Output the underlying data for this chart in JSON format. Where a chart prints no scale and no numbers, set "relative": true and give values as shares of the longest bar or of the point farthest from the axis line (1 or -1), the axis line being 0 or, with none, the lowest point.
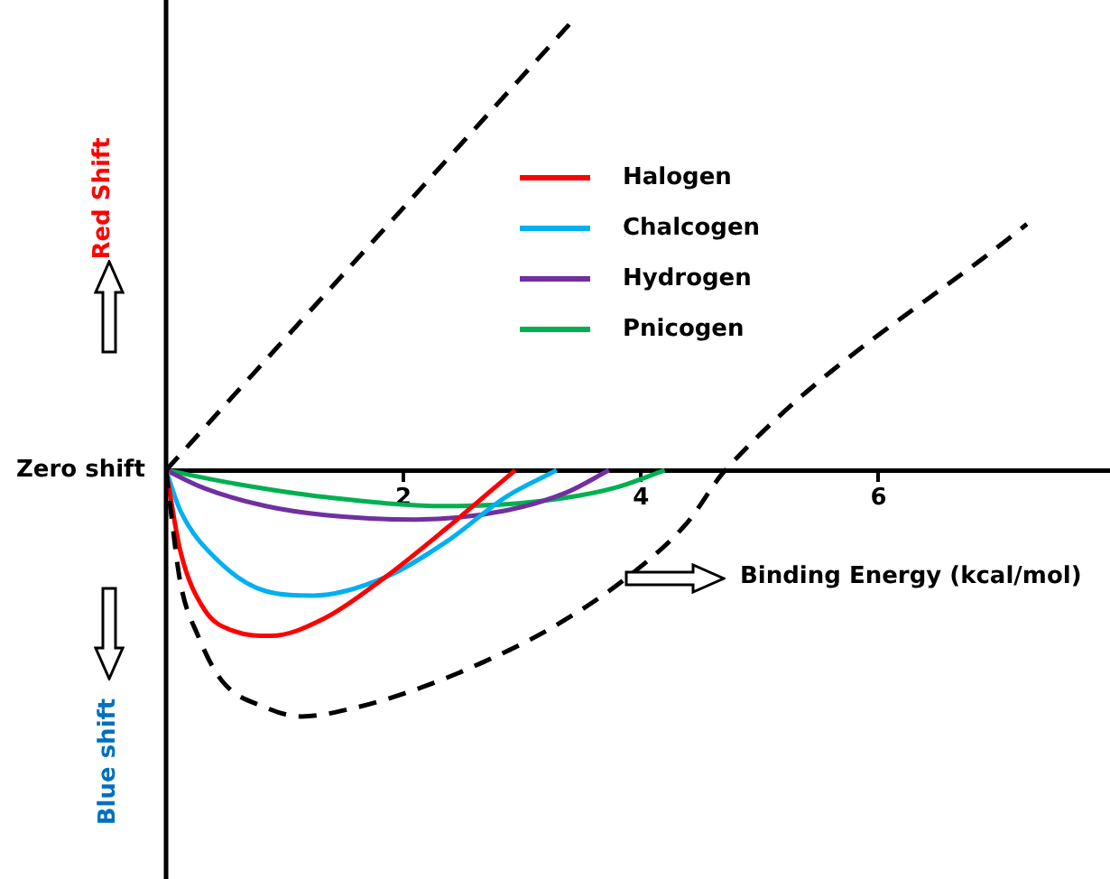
{
  "chart_data": {
    "type": "line",
    "relative": true,
    "xlabel": "Binding Energy (kcal/mol)",
    "annotations": [
      "Red Shift",
      "Blue shift",
      "Zero shift"
    ],
    "xlim": [
      0,
      7.95
    ],
    "xticks": [
      2,
      4,
      6
    ],
    "grid": false,
    "legend": "top",
    "marker": "none",
    "tick_labels": "x",
    "series": [
      {
        "color": "#000000",
        "line_style": "dashed",
        "x": [
          0,
          3.41
        ],
        "values": [
          0,
          1.0
        ]
      },
      {
        "color": "#000000",
        "line_style": "dashed",
        "x": [
          0,
          0.04,
          0.12,
          0.27,
          0.47,
          0.84,
          1.14,
          1.6,
          2.1,
          2.66,
          3.26,
          3.88,
          4.38,
          4.71,
          7.25
        ],
        "values": [
          0,
          -0.09,
          -0.25,
          -0.37,
          -0.47,
          -0.53,
          -0.55,
          -0.53,
          -0.49,
          -0.43,
          -0.35,
          -0.24,
          -0.12,
          0,
          0.55
        ]
      },
      {
        "name": "Halogen",
        "color": "#ff0000",
        "line_style": "solid",
        "x": [
          0,
          0.12,
          0.32,
          0.58,
          0.88,
          1.34,
          1.84,
          2.36,
          2.94
        ],
        "values": [
          0,
          -0.18,
          -0.31,
          -0.36,
          -0.37,
          -0.33,
          -0.24,
          -0.13,
          0
        ]
      },
      {
        "name": "Chalcogen",
        "color": "#00b0f0",
        "line_style": "solid",
        "x": [
          0,
          0.12,
          0.43,
          0.84,
          1.24,
          1.84,
          2.36,
          2.86,
          3.29
        ],
        "values": [
          0,
          -0.09,
          -0.2,
          -0.27,
          -0.28,
          -0.24,
          -0.16,
          -0.06,
          0
        ]
      },
      {
        "name": "Hydrogen",
        "color": "#7030a0",
        "line_style": "solid",
        "x": [
          0,
          0.32,
          0.84,
          1.34,
          2.1,
          2.86,
          3.37,
          3.73
        ],
        "values": [
          0,
          -0.04,
          -0.08,
          -0.1,
          -0.11,
          -0.09,
          -0.05,
          0
        ]
      },
      {
        "name": "Pnicogen",
        "color": "#00b050",
        "line_style": "solid",
        "x": [
          0,
          0.58,
          1.34,
          2.36,
          3.12,
          3.77,
          4.2
        ],
        "values": [
          0,
          -0.03,
          -0.06,
          -0.08,
          -0.07,
          -0.04,
          0
        ]
      }
    ]
  }
}
